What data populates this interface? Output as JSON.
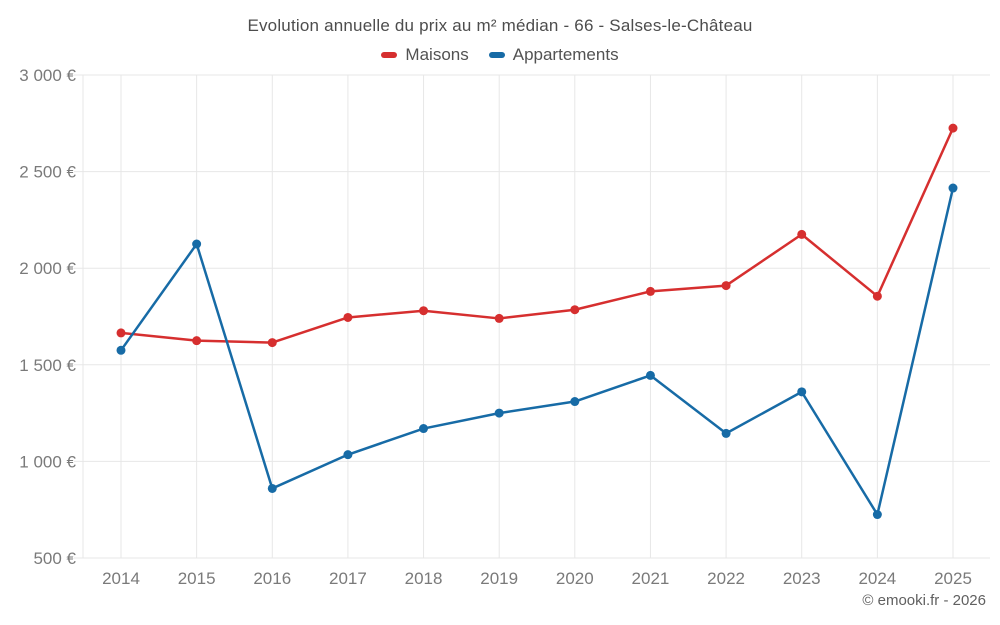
{
  "page": {
    "title": "Evolution annuelle du prix au m² médian - 66 - Salses-le-Château",
    "footer": "© emooki.fr - 2026"
  },
  "legend": {
    "items": [
      {
        "label": "Maisons",
        "color": "#d62f2f"
      },
      {
        "label": "Appartements",
        "color": "#176ba6"
      }
    ]
  },
  "chart_data": {
    "type": "line",
    "title": "Evolution annuelle du prix au m² médian - 66 - Salses-le-Château",
    "x": [
      2014,
      2015,
      2016,
      2017,
      2018,
      2019,
      2020,
      2021,
      2022,
      2023,
      2024,
      2025
    ],
    "series": [
      {
        "name": "Maisons",
        "color": "#d62f2f",
        "values": [
          1665,
          1625,
          1615,
          1745,
          1780,
          1740,
          1785,
          1880,
          1910,
          2175,
          1855,
          2725
        ]
      },
      {
        "name": "Appartements",
        "color": "#176ba6",
        "values": [
          1575,
          2125,
          860,
          1035,
          1170,
          1250,
          1310,
          1445,
          1145,
          1360,
          725,
          2415
        ]
      }
    ],
    "xlabel": "",
    "ylabel": "",
    "ylim": [
      500,
      3000
    ],
    "y_tick_step": 500,
    "y_tick_labels": [
      "500 €",
      "1 000 €",
      "1 500 €",
      "2 000 €",
      "2 500 €",
      "3 000 €"
    ],
    "currency": "€",
    "grid": true,
    "legend_position": "top"
  }
}
